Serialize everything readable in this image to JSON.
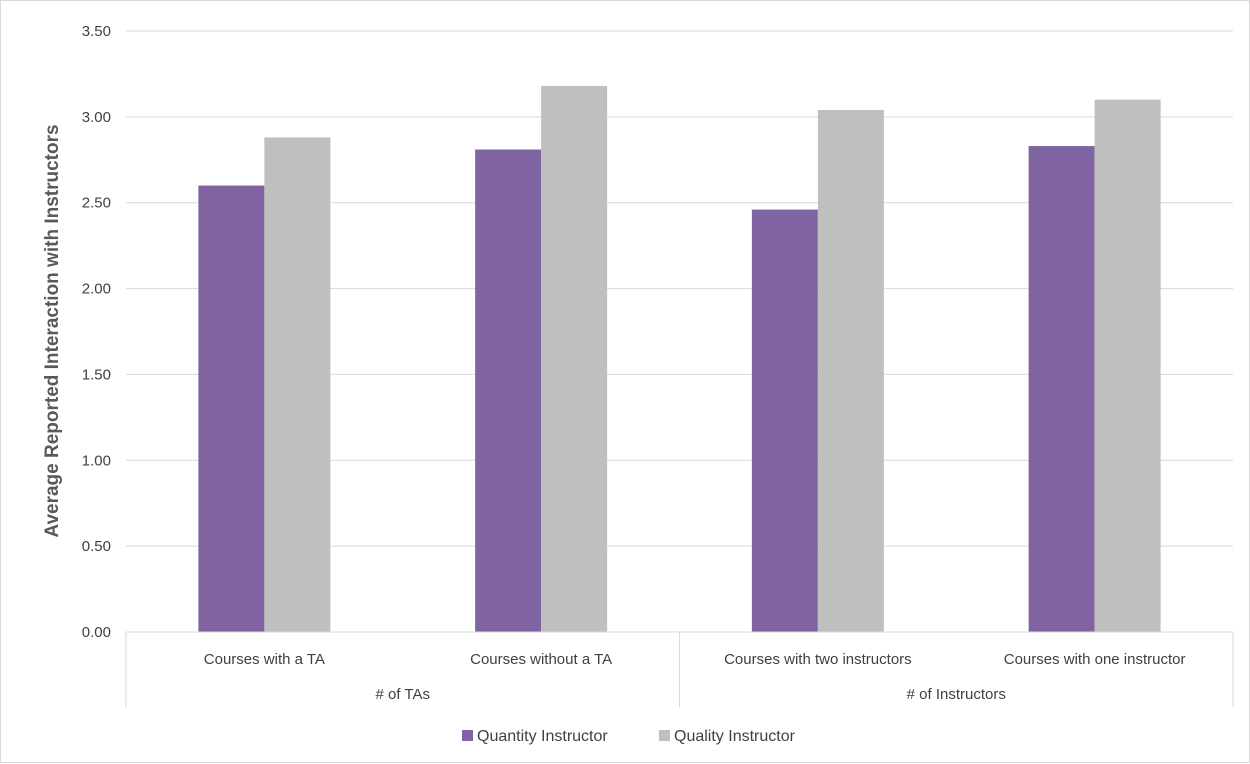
{
  "chart_data": {
    "type": "bar",
    "title": "",
    "xlabel": "",
    "ylabel": "Average Reported Interaction with Instructors",
    "ylim": [
      0,
      3.5
    ],
    "yticks": [
      "0.00",
      "0.50",
      "1.00",
      "1.50",
      "2.00",
      "2.50",
      "3.00",
      "3.50"
    ],
    "grid": true,
    "legend_position": "bottom",
    "categories": [
      "Courses with a TA",
      "Courses without a TA",
      "Courses with two instructors",
      "Courses with one instructor"
    ],
    "groups": [
      {
        "label": "# of TAs",
        "categories": [
          "Courses with a TA",
          "Courses without a TA"
        ]
      },
      {
        "label": "# of Instructors",
        "categories": [
          "Courses with two instructors",
          "Courses with one instructor"
        ]
      }
    ],
    "series": [
      {
        "name": "Quantity Instructor",
        "color": "#8064a2",
        "values": [
          2.6,
          2.81,
          2.46,
          2.83
        ]
      },
      {
        "name": "Quality Instructor",
        "color": "#bfbfbf",
        "values": [
          2.88,
          3.18,
          3.04,
          3.1
        ]
      }
    ]
  }
}
